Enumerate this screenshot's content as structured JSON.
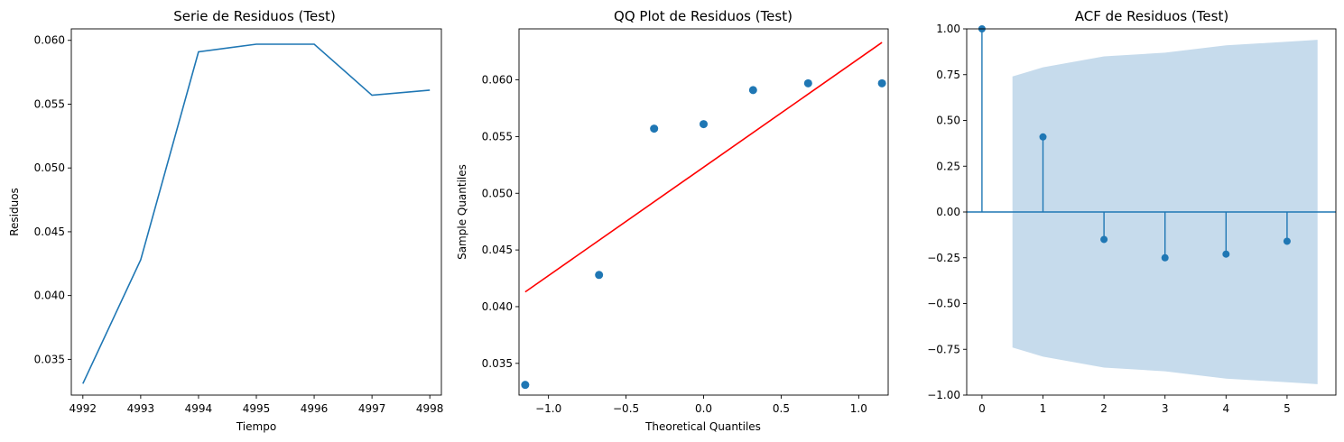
{
  "chart_data": [
    {
      "type": "line",
      "title": "Serie de Residuos (Test)",
      "xlabel": "Tiempo",
      "ylabel": "Residuos",
      "xlim": [
        4991.8,
        4998.2
      ],
      "ylim": [
        0.0322,
        0.0609
      ],
      "xticks": [
        4992,
        4993,
        4994,
        4995,
        4996,
        4997,
        4998
      ],
      "xtick_labels": [
        "4992",
        "4993",
        "4994",
        "4995",
        "4996",
        "4997",
        "4998"
      ],
      "yticks": [
        0.035,
        0.04,
        0.045,
        0.05,
        0.055,
        0.06
      ],
      "ytick_labels": [
        "0.035",
        "0.040",
        "0.045",
        "0.050",
        "0.055",
        "0.060"
      ],
      "grid": false,
      "series": [
        {
          "color": "#1f77b4",
          "x": [
            4992,
            4993,
            4994,
            4995,
            4996,
            4997,
            4998
          ],
          "y": [
            0.0331,
            0.0428,
            0.0591,
            0.0597,
            0.0597,
            0.0557,
            0.0561
          ]
        }
      ]
    },
    {
      "type": "scatter",
      "title": "QQ Plot de Residuos (Test)",
      "xlabel": "Theoretical Quantiles",
      "ylabel": "Sample Quantiles",
      "xlim": [
        -1.19,
        1.19
      ],
      "ylim": [
        0.0322,
        0.0645
      ],
      "xticks": [
        -1.0,
        -0.5,
        0.0,
        0.5,
        1.0
      ],
      "xtick_labels": [
        "−1.0",
        "−0.5",
        "0.0",
        "0.5",
        "1.0"
      ],
      "yticks": [
        0.035,
        0.04,
        0.045,
        0.05,
        0.055,
        0.06
      ],
      "ytick_labels": [
        "0.035",
        "0.040",
        "0.045",
        "0.050",
        "0.055",
        "0.060"
      ],
      "grid": false,
      "points": {
        "color": "#1f77b4",
        "x": [
          -1.15,
          -0.674,
          -0.319,
          0.0,
          0.319,
          0.674,
          1.15
        ],
        "y": [
          0.0331,
          0.0428,
          0.0557,
          0.0561,
          0.0591,
          0.0597,
          0.0597
        ]
      },
      "reference_line": {
        "color": "#ff0000",
        "x": [
          -1.15,
          1.15
        ],
        "y": [
          0.0413,
          0.0633
        ]
      }
    },
    {
      "type": "stem",
      "title": "ACF de Residuos (Test)",
      "xlabel": "",
      "ylabel": "",
      "xlim": [
        -0.25,
        5.8
      ],
      "ylim": [
        -1.0,
        1.0
      ],
      "xticks": [
        0,
        1,
        2,
        3,
        4,
        5
      ],
      "xtick_labels": [
        "0",
        "1",
        "2",
        "3",
        "4",
        "5"
      ],
      "yticks": [
        -1.0,
        -0.75,
        -0.5,
        -0.25,
        0.0,
        0.25,
        0.5,
        0.75,
        1.0
      ],
      "ytick_labels": [
        "−1.00",
        "−0.75",
        "−0.50",
        "−0.25",
        "0.00",
        "0.25",
        "0.50",
        "0.75",
        "1.00"
      ],
      "grid": false,
      "lags": [
        0,
        1,
        2,
        3,
        4,
        5
      ],
      "values": [
        1.0,
        0.41,
        -0.15,
        -0.25,
        -0.23,
        -0.16
      ],
      "stem_color": "#1f77b4",
      "confidence_band": {
        "color": "#c6dbec",
        "x": [
          0.5,
          1,
          2,
          3,
          4,
          5,
          5.5
        ],
        "upper": [
          0.74,
          0.79,
          0.85,
          0.87,
          0.91,
          0.93,
          0.94
        ],
        "lower": [
          -0.74,
          -0.79,
          -0.85,
          -0.87,
          -0.91,
          -0.93,
          -0.94
        ]
      }
    }
  ]
}
